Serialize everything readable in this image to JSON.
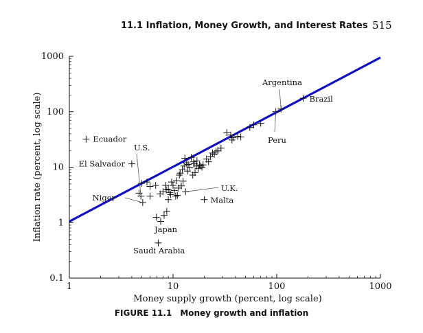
{
  "header": {
    "section_title": "11.1   Inflation, Money Growth, and Interest Rates",
    "page_number": "515"
  },
  "caption": {
    "label": "FIGURE 11.1",
    "title": "Money growth and inflation"
  },
  "chart_data": {
    "type": "scatter",
    "title": "",
    "xlabel": "Money supply growth (percent, log scale)",
    "ylabel": "Inflation rate (percent, log scale)",
    "xscale": "log",
    "yscale": "log",
    "xlim": [
      1,
      1000
    ],
    "ylim": [
      0.1,
      1000
    ],
    "x_ticks": [
      1,
      10,
      100,
      1000
    ],
    "x_tick_labels": [
      "1",
      "10",
      "100",
      "1000"
    ],
    "y_ticks": [
      0.1,
      1,
      10,
      100,
      1000
    ],
    "y_tick_labels": [
      "0.1",
      "1",
      "10",
      "100",
      "1000"
    ],
    "grid": false,
    "line": {
      "x": [
        1,
        1000
      ],
      "y": [
        1.05,
        950
      ],
      "color": "#1010c0"
    },
    "marker": "+",
    "point_color": "#111111",
    "points": [
      [
        1.45,
        32.0
      ],
      [
        4.0,
        11.5
      ],
      [
        4.7,
        3.4
      ],
      [
        4.9,
        3.0
      ],
      [
        4.95,
        5.1
      ],
      [
        5.1,
        2.3
      ],
      [
        5.6,
        5.4
      ],
      [
        6.0,
        4.5
      ],
      [
        6.0,
        3.0
      ],
      [
        6.8,
        4.7
      ],
      [
        6.9,
        1.25
      ],
      [
        7.2,
        0.43
      ],
      [
        7.6,
        1.05
      ],
      [
        7.5,
        3.3
      ],
      [
        8.0,
        3.6
      ],
      [
        8.2,
        1.35
      ],
      [
        8.5,
        4.7
      ],
      [
        8.6,
        3.9
      ],
      [
        8.7,
        1.6
      ],
      [
        9.0,
        4.0
      ],
      [
        9.0,
        2.6
      ],
      [
        9.3,
        3.5
      ],
      [
        9.5,
        3.2
      ],
      [
        9.7,
        5.4
      ],
      [
        10.0,
        4.7
      ],
      [
        10.3,
        3.8
      ],
      [
        10.6,
        3.0
      ],
      [
        10.8,
        5.7
      ],
      [
        11.0,
        3.1
      ],
      [
        11.3,
        4.2
      ],
      [
        11.5,
        7.2
      ],
      [
        11.7,
        7.8
      ],
      [
        12.0,
        4.6
      ],
      [
        12.3,
        9.0
      ],
      [
        12.5,
        5.6
      ],
      [
        12.8,
        10.5
      ],
      [
        13.0,
        14.5
      ],
      [
        13.2,
        3.6
      ],
      [
        13.5,
        12.0
      ],
      [
        13.8,
        8.5
      ],
      [
        14.0,
        11.2
      ],
      [
        14.5,
        10.0
      ],
      [
        15.0,
        15.0
      ],
      [
        15.5,
        7.2
      ],
      [
        15.8,
        12.5
      ],
      [
        16.0,
        11.5
      ],
      [
        16.3,
        8.0
      ],
      [
        16.8,
        10.5
      ],
      [
        17.0,
        13.0
      ],
      [
        17.5,
        9.5
      ],
      [
        18.0,
        11.0
      ],
      [
        18.5,
        10.5
      ],
      [
        19.0,
        10.0
      ],
      [
        19.5,
        11.0
      ],
      [
        20.0,
        2.6
      ],
      [
        21.0,
        14.0
      ],
      [
        22.0,
        12.5
      ],
      [
        23.0,
        15.5
      ],
      [
        24.0,
        18.0
      ],
      [
        25.0,
        17.0
      ],
      [
        26.0,
        19.0
      ],
      [
        27.0,
        20.0
      ],
      [
        29.0,
        22.0
      ],
      [
        33.0,
        42.0
      ],
      [
        36.0,
        38.0
      ],
      [
        37.0,
        31.0
      ],
      [
        38.0,
        34.0
      ],
      [
        42.0,
        36.0
      ],
      [
        45.0,
        35.0
      ],
      [
        55.0,
        52.0
      ],
      [
        60.0,
        58.0
      ],
      [
        70.0,
        62.0
      ],
      [
        98.0,
        100.0
      ],
      [
        110.0,
        112.0
      ],
      [
        180.0,
        175.0
      ]
    ],
    "annotations": [
      {
        "text": "Ecuador",
        "x": 1.45,
        "y": 32.0,
        "anchor": "start",
        "dx": 10,
        "dy": 4,
        "leader": false
      },
      {
        "text": "El Salvador",
        "x": 4.0,
        "y": 11.5,
        "anchor": "end",
        "dx": -10,
        "dy": 4,
        "leader": false
      },
      {
        "text": "U.S.",
        "x": 4.9,
        "y": 3.0,
        "anchor": "start",
        "dx": -4,
        "dy": 0,
        "leader": true,
        "label_x": 195,
        "label_y": 219,
        "line_from": [
          199,
          224
        ]
      },
      {
        "text": "Niger",
        "x": 5.1,
        "y": 2.3,
        "anchor": "end",
        "dx": 0,
        "dy": 0,
        "leader": true,
        "label_x": 168,
        "label_y": 292,
        "line_from": [
          182,
          288
        ]
      },
      {
        "text": "U.K.",
        "x": 13.2,
        "y": 3.6,
        "anchor": "start",
        "dx": 0,
        "dy": 0,
        "leader": true,
        "label_x": 322,
        "label_y": 278,
        "line_from": [
          318,
          273
        ]
      },
      {
        "text": "Malta",
        "x": 20.0,
        "y": 2.6,
        "anchor": "start",
        "dx": 9,
        "dy": 5,
        "leader": false
      },
      {
        "text": "Japan",
        "x": 7.6,
        "y": 1.05,
        "anchor": "start",
        "dx": -2,
        "dy": 0,
        "leader": false,
        "label_x": 225,
        "label_y": 338
      },
      {
        "text": "Saudi Arabia",
        "x": 7.2,
        "y": 0.43,
        "anchor": "start",
        "dx": 0,
        "dy": 0,
        "leader": false,
        "label_x": 194,
        "label_y": 369
      },
      {
        "text": "Argentina",
        "x": 110.0,
        "y": 112.0,
        "anchor": "start",
        "dx": 0,
        "dy": 0,
        "leader": true,
        "label_x": 382,
        "label_y": 124,
        "line_from": [
          407,
          130
        ]
      },
      {
        "text": "Brazil",
        "x": 180.0,
        "y": 175.0,
        "anchor": "start",
        "dx": 9,
        "dy": 5,
        "leader": false
      },
      {
        "text": "Peru",
        "x": 98.0,
        "y": 100.0,
        "anchor": "start",
        "dx": 0,
        "dy": 0,
        "leader": true,
        "label_x": 390,
        "label_y": 208,
        "line_from": [
          400,
          192
        ]
      }
    ]
  }
}
